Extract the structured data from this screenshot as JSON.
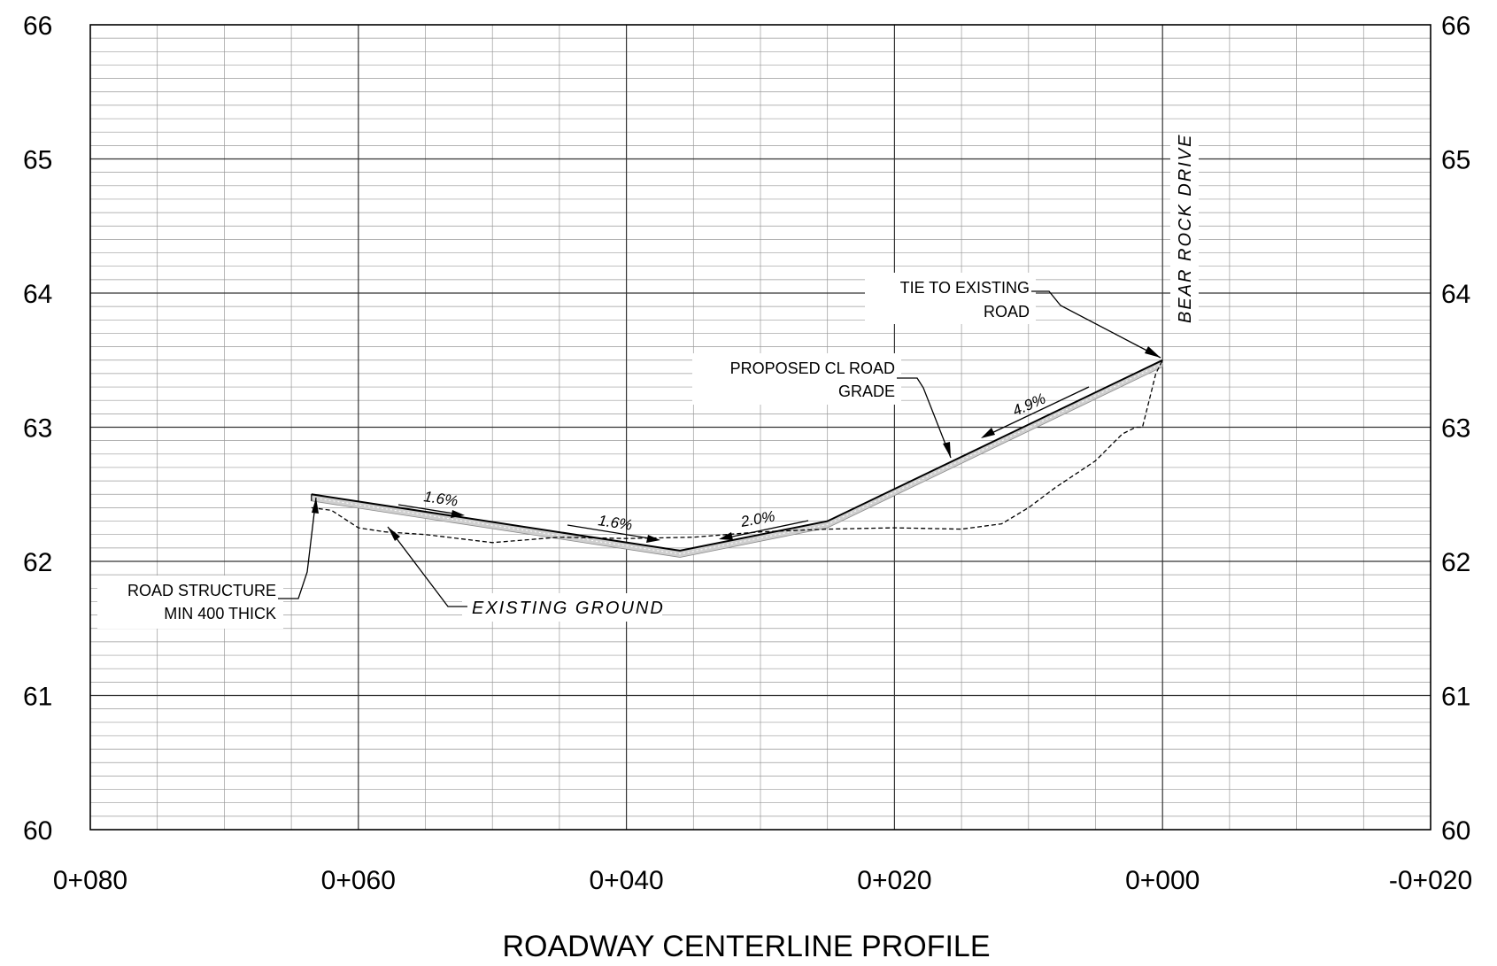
{
  "chart_data": {
    "type": "line",
    "title": "ROADWAY CENTERLINE PROFILE",
    "xlabel": "",
    "ylabel": "",
    "x_reversed": true,
    "xlim": [
      80,
      -20
    ],
    "ylim": [
      60,
      66
    ],
    "grid": true,
    "x_ticks": [
      "0+080",
      "0+060",
      "0+040",
      "0+020",
      "0+000",
      "-0+020"
    ],
    "y_ticks": [
      "60",
      "61",
      "62",
      "63",
      "64",
      "65",
      "66"
    ],
    "series": [
      {
        "role": "proposed-grade",
        "x": [
          63.5,
          36.0,
          25.0,
          0.0
        ],
        "y": [
          62.5,
          62.08,
          62.3,
          63.5
        ]
      },
      {
        "role": "existing-ground",
        "x": [
          63.5,
          62.0,
          60.0,
          58.0,
          55.0,
          50.0,
          45.0,
          40.0,
          35.0,
          30.0,
          25.0,
          20.0,
          15.0,
          12.0,
          10.0,
          8.0,
          5.0,
          3.0,
          2.0,
          1.5,
          1.0,
          0.5,
          0.0
        ],
        "y": [
          62.4,
          62.38,
          62.25,
          62.22,
          62.2,
          62.14,
          62.18,
          62.17,
          62.18,
          62.22,
          62.24,
          62.25,
          62.24,
          62.28,
          62.4,
          62.55,
          62.75,
          62.95,
          63.0,
          63.0,
          63.2,
          63.4,
          63.5
        ]
      }
    ],
    "annotations": {
      "slope_1": "1.6%",
      "slope_2": "1.6%",
      "slope_3": "2.0%",
      "slope_4": "4.9%",
      "tie_line1": "TIE TO EXISTING",
      "tie_line2": "ROAD",
      "grade_line1": "PROPOSED CL ROAD",
      "grade_line2": "GRADE",
      "structure_line1": "ROAD STRUCTURE",
      "structure_line2": "MIN 400 THICK",
      "existing_ground": "EXISTING  GROUND",
      "bear_rock": "BEAR  ROCK  DRIVE"
    }
  }
}
